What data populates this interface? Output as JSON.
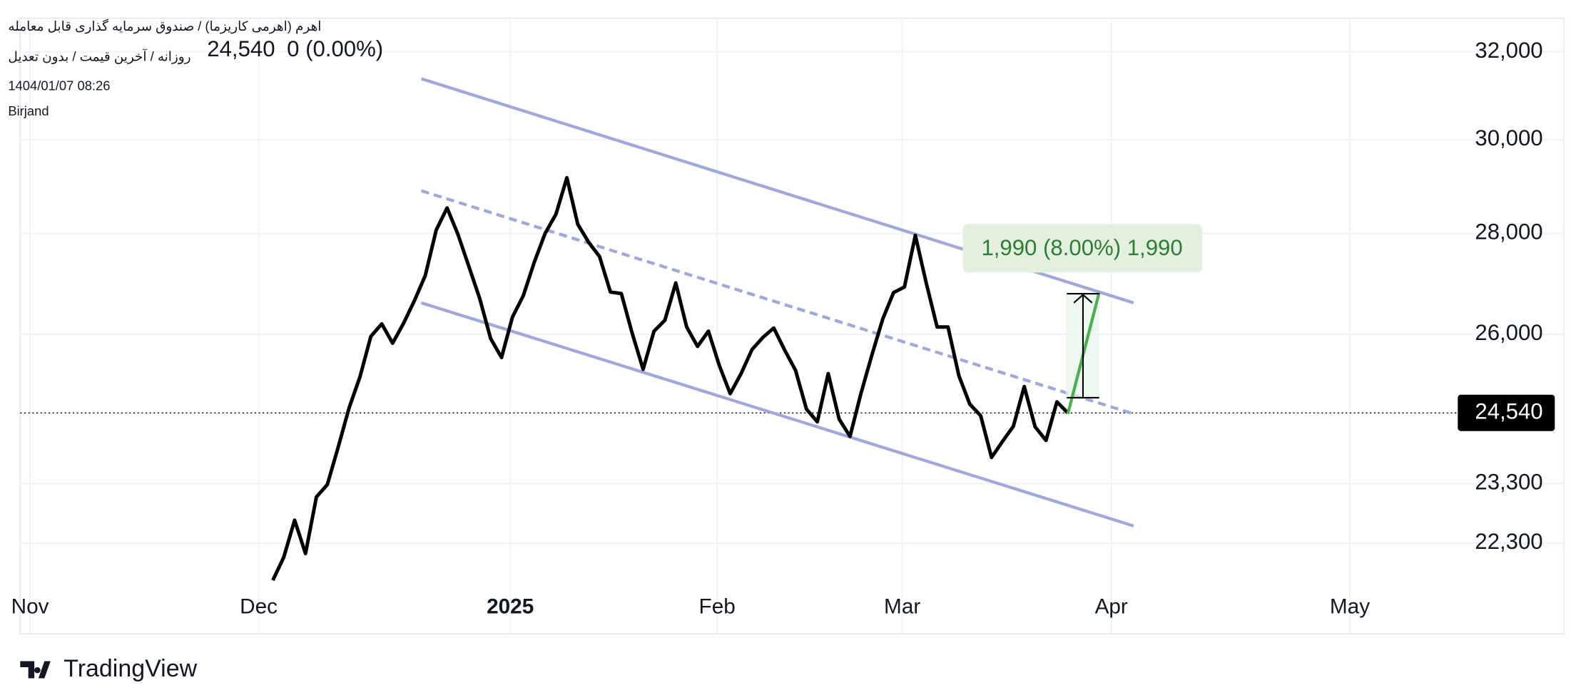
{
  "header": {
    "title": "اهرم (اهرمی کاریزما) / صندوق سرمایه گذاری قابل معامله",
    "price": "24,540",
    "change": "0 (0.00%)",
    "subtitle": "روزانه / آخرین قیمت / بدون تعدیل",
    "datetime": "1404/01/07 08:26",
    "location": "Birjand"
  },
  "chart_data": {
    "type": "line",
    "log_scale": true,
    "grid": true,
    "series": [
      {
        "name": "اهرم",
        "color": "#000000",
        "values": [
          21700,
          22070,
          22680,
          22130,
          23070,
          23280,
          23930,
          24630,
          25200,
          25960,
          26200,
          25830,
          26210,
          26650,
          27150,
          28070,
          28530,
          27980,
          27330,
          26690,
          25920,
          25560,
          26330,
          26750,
          27410,
          28000,
          28400,
          29170,
          28190,
          27820,
          27530,
          26820,
          26790,
          26020,
          25340,
          26060,
          26270,
          27000,
          26140,
          25770,
          26060,
          25410,
          24890,
          25260,
          25710,
          25940,
          26120,
          25700,
          25320,
          24610,
          24380,
          25260,
          24430,
          24120,
          24890,
          25600,
          26290,
          26810,
          26920,
          27960,
          27000,
          26140,
          26140,
          25220,
          24700,
          24490,
          23750,
          24030,
          24300,
          25020,
          24290,
          24050,
          24740,
          24540
        ]
      }
    ],
    "xlim": [
      -23.2,
      109
    ],
    "xticks": [
      {
        "value": -22.3,
        "label": "Nov"
      },
      {
        "value": -1.3,
        "label": "Dec"
      },
      {
        "value": 21.8,
        "label": "2025"
      },
      {
        "value": 40.8,
        "label": "Feb"
      },
      {
        "value": 57.8,
        "label": "Mar"
      },
      {
        "value": 77,
        "label": "Apr"
      },
      {
        "value": 98.9,
        "label": "May"
      }
    ],
    "ylim": [
      21650,
      32800
    ],
    "yticks": [
      {
        "value": 22300,
        "label": "22,300"
      },
      {
        "value": 23300,
        "label": "23,300"
      },
      {
        "value": 26000,
        "label": "26,000"
      },
      {
        "value": 28000,
        "label": "28,000"
      },
      {
        "value": 30000,
        "label": "30,000"
      },
      {
        "value": 32000,
        "label": "32,000"
      }
    ],
    "last_price": {
      "value": 24540,
      "label": "24,540"
    },
    "annotation": "1,990 (8.00%) 1,990"
  },
  "footer": {
    "brand": "TradingView"
  }
}
